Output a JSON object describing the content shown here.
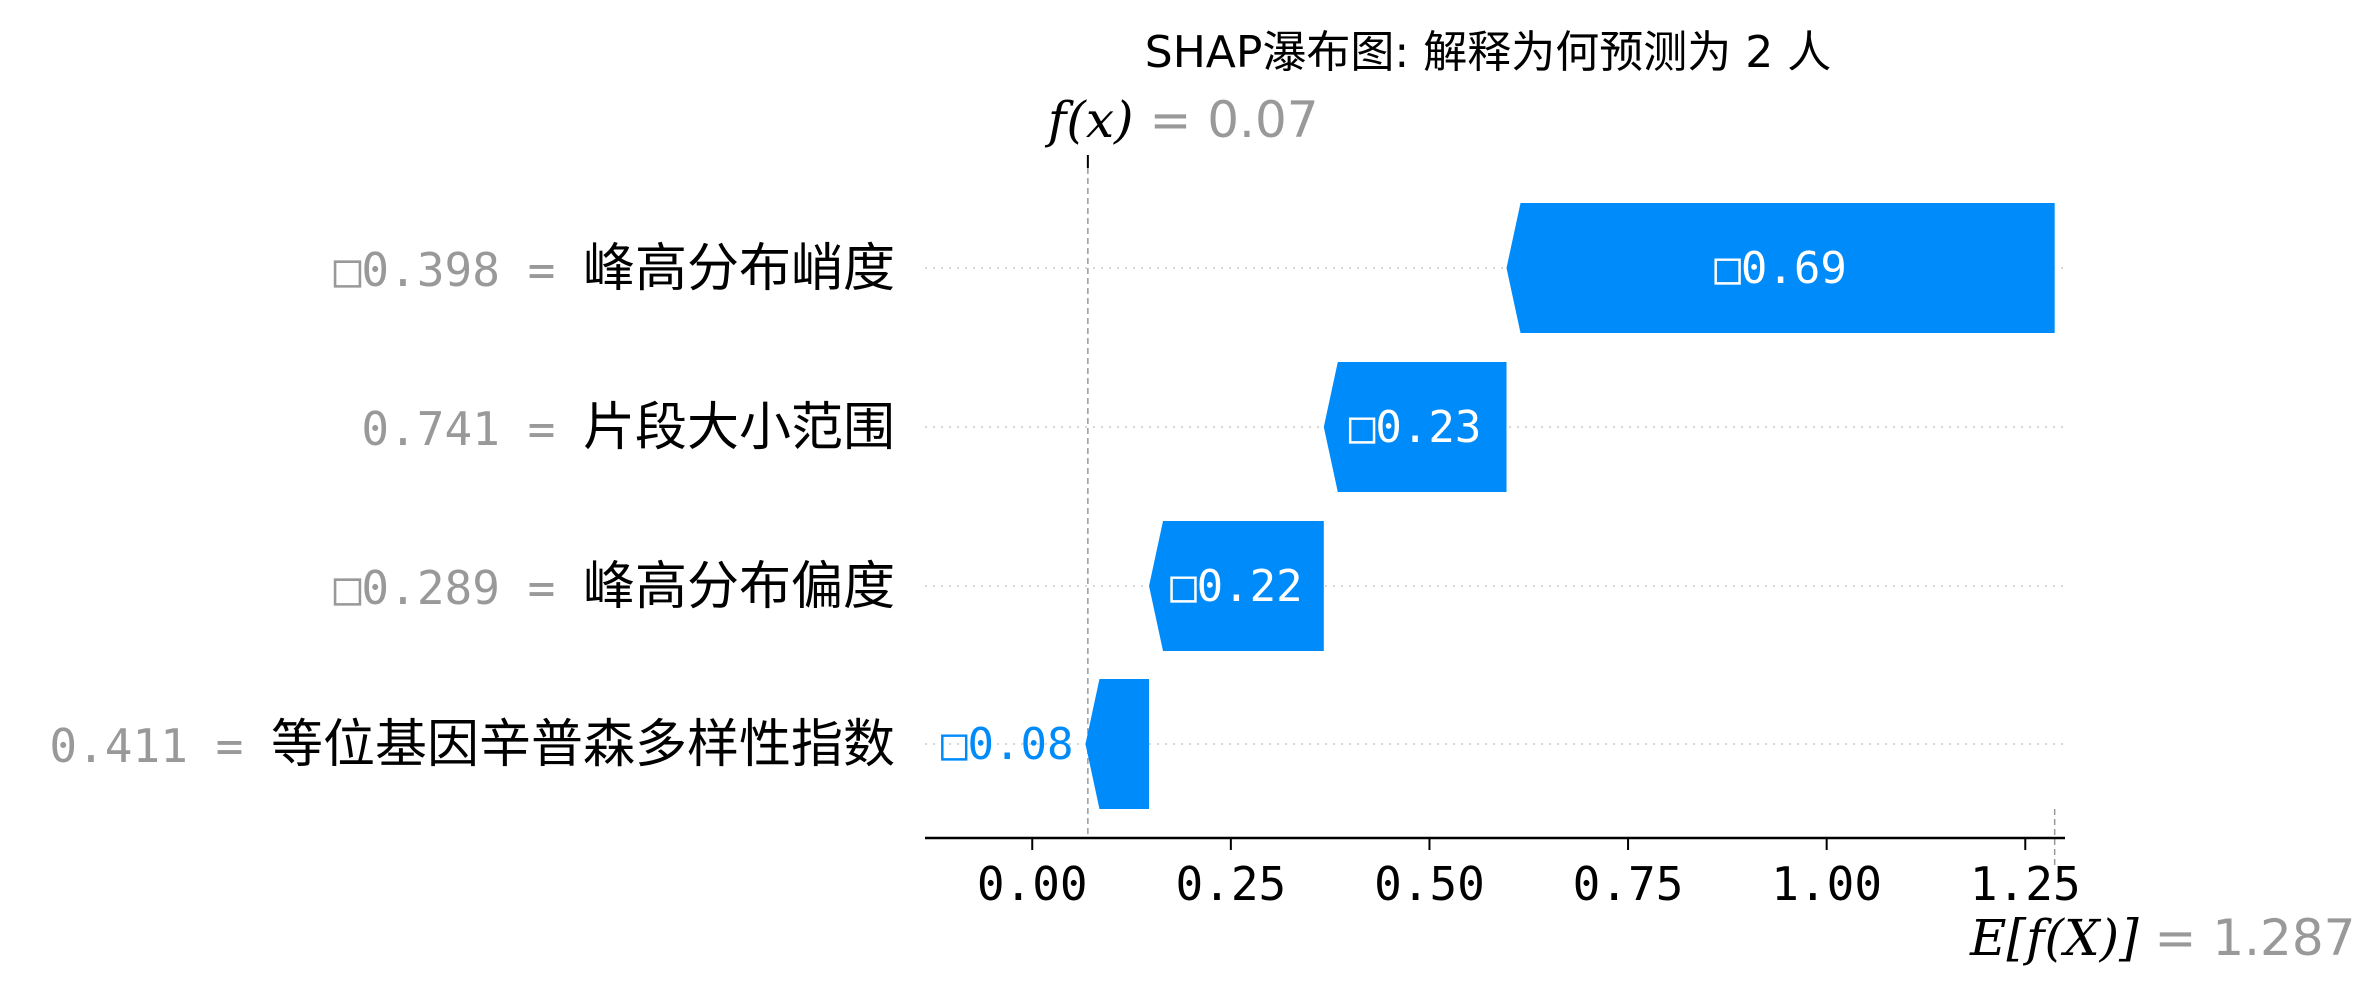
{
  "chart_data": {
    "type": "bar",
    "subtype": "shap-waterfall",
    "title": "SHAP瀑布图: 解释为何预测为 2 人",
    "base_value": 1.287,
    "output_value": 0.07,
    "fx_label": "f(x)",
    "fx_value_text": "= 0.07",
    "ex_label": "E[f(X)]",
    "ex_value_text": "= 1.287",
    "xlim": [
      -0.135,
      1.3
    ],
    "xticks": [
      0.0,
      0.25,
      0.5,
      0.75,
      1.0,
      1.25
    ],
    "xtick_labels": [
      "0.00",
      "0.25",
      "0.50",
      "0.75",
      "1.00",
      "1.25"
    ],
    "features": [
      {
        "value": "□0.398",
        "name": "峰高分布峭度",
        "shap": -0.69,
        "label": "□0.69",
        "label_inside": true
      },
      {
        "value": "0.741",
        "name": "片段大小范围",
        "shap": -0.23,
        "label": "□0.23",
        "label_inside": true
      },
      {
        "value": "□0.289",
        "name": "峰高分布偏度",
        "shap": -0.22,
        "label": "□0.22",
        "label_inside": true
      },
      {
        "value": "0.411",
        "name": "等位基因辛普森多样性指数",
        "shap": -0.08,
        "label": "□0.08",
        "label_inside": false
      }
    ],
    "colors": {
      "negative": "#008bfb",
      "label_inside": "#ffffff",
      "label_outside": "#008bfb",
      "muted": "#999999",
      "grid": "#cccccc"
    }
  }
}
